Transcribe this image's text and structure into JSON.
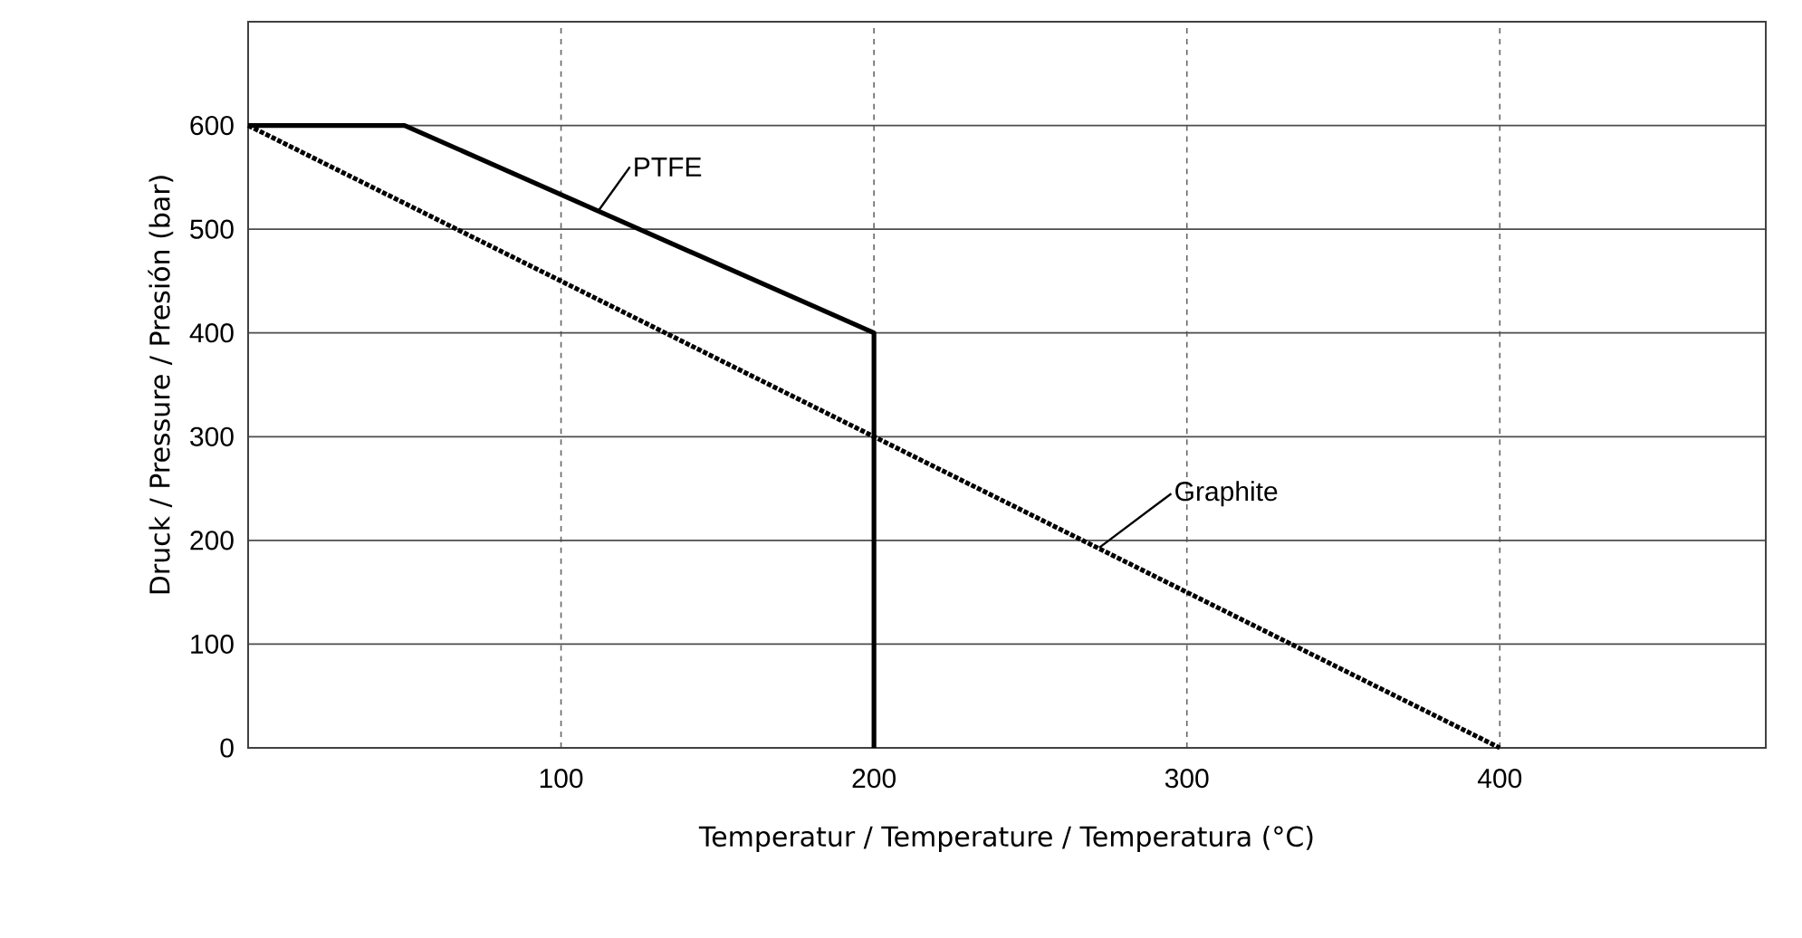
{
  "chart_data": {
    "type": "line",
    "xlabel": "Temperatur / Temperature / Temperatura (°C)",
    "ylabel": "Druck / Pressure / Presión (bar)",
    "xlim": [
      0,
      485
    ],
    "ylim": [
      0,
      700
    ],
    "xticks": [
      100,
      200,
      300,
      400
    ],
    "yticks": [
      0,
      100,
      200,
      300,
      400,
      500,
      600
    ],
    "grid": true,
    "series": [
      {
        "name": "PTFE",
        "color": "#000000",
        "line_style": "solid",
        "x": [
          0,
          50,
          200,
          200
        ],
        "values": [
          600,
          600,
          400,
          0
        ]
      },
      {
        "name": "Graphite",
        "color": "#000000",
        "line_style": "dotted",
        "x": [
          0,
          400
        ],
        "values": [
          600,
          0
        ]
      }
    ]
  }
}
